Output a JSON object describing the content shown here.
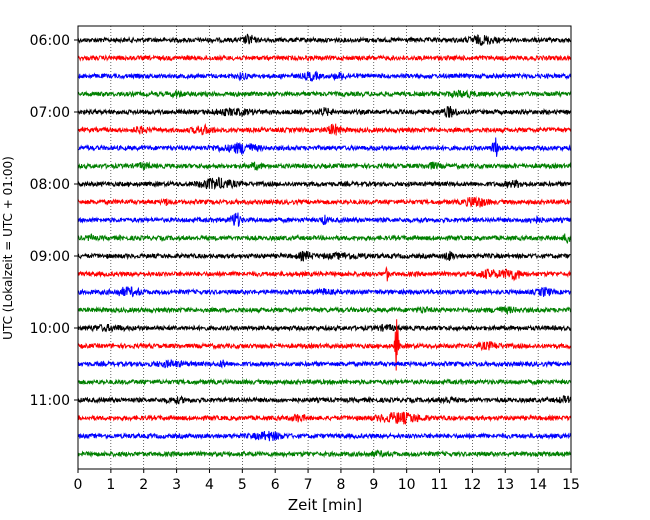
{
  "chart_data": {
    "type": "line",
    "title": "",
    "xlabel": "Zeit  [min]",
    "ylabel": "UTC (Lokalzeit = UTC + 01:00)",
    "xlim": [
      0,
      15
    ],
    "x_ticks": [
      "0",
      "1",
      "2",
      "3",
      "4",
      "5",
      "6",
      "7",
      "8",
      "9",
      "10",
      "11",
      "12",
      "13",
      "14",
      "15"
    ],
    "y_tick_labels": [
      "06:00",
      "07:00",
      "08:00",
      "09:00",
      "10:00",
      "11:00"
    ],
    "grid": "vertical dotted",
    "trace_interval_minutes": 15,
    "colors": [
      "#000000",
      "#ff0000",
      "#0000ff",
      "#008000"
    ],
    "traces": [
      {
        "start": "06:00",
        "color": "#000000"
      },
      {
        "start": "06:15",
        "color": "#ff0000"
      },
      {
        "start": "06:30",
        "color": "#0000ff"
      },
      {
        "start": "06:45",
        "color": "#008000"
      },
      {
        "start": "07:00",
        "color": "#000000"
      },
      {
        "start": "07:15",
        "color": "#ff0000"
      },
      {
        "start": "07:30",
        "color": "#0000ff"
      },
      {
        "start": "07:45",
        "color": "#008000"
      },
      {
        "start": "08:00",
        "color": "#000000"
      },
      {
        "start": "08:15",
        "color": "#ff0000"
      },
      {
        "start": "08:30",
        "color": "#0000ff"
      },
      {
        "start": "08:45",
        "color": "#008000"
      },
      {
        "start": "09:00",
        "color": "#000000"
      },
      {
        "start": "09:15",
        "color": "#ff0000"
      },
      {
        "start": "09:30",
        "color": "#0000ff"
      },
      {
        "start": "09:45",
        "color": "#008000"
      },
      {
        "start": "10:00",
        "color": "#000000"
      },
      {
        "start": "10:15",
        "color": "#ff0000"
      },
      {
        "start": "10:30",
        "color": "#0000ff"
      },
      {
        "start": "10:45",
        "color": "#008000"
      },
      {
        "start": "11:00",
        "color": "#000000"
      },
      {
        "start": "11:15",
        "color": "#ff0000"
      },
      {
        "start": "11:30",
        "color": "#0000ff"
      },
      {
        "start": "11:45",
        "color": "#008000"
      }
    ]
  }
}
